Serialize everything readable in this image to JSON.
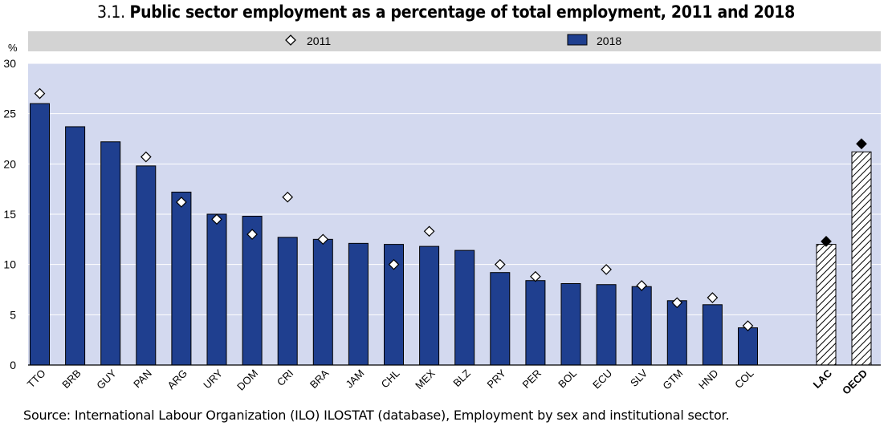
{
  "title": {
    "number": "3.1.",
    "text": "Public sector employment as a percentage of total employment, 2011 and 2018"
  },
  "source": "Source: International Labour Organization (ILO) ILOSTAT (database), Employment by sex and institutional sector.",
  "colors": {
    "plot_bg": "#d3d9ef",
    "legend_bg": "#d3d3d3",
    "bar_2018": "#1f3f8f",
    "bar_edge": "#000000",
    "hatch_bg": "#ffffff",
    "marker_2011_fill": "#ffffff",
    "marker_agg_fill": "#000000",
    "grid": "#ffffff"
  },
  "chart_data": {
    "type": "bar",
    "title": "Public sector employment as a percentage of total employment, 2011 and 2018",
    "ylabel": "%",
    "ylim": [
      0,
      30
    ],
    "yticks": [
      0,
      5,
      10,
      15,
      20,
      25,
      30
    ],
    "grid": true,
    "legend": {
      "placement": "top",
      "entries": [
        "2011",
        "2018"
      ]
    },
    "categories": [
      "TTO",
      "BRB",
      "GUY",
      "PAN",
      "ARG",
      "URY",
      "DOM",
      "CRI",
      "BRA",
      "JAM",
      "CHL",
      "MEX",
      "BLZ",
      "PRY",
      "PER",
      "BOL",
      "ECU",
      "SLV",
      "GTM",
      "HND",
      "COL",
      "LAC",
      "OECD"
    ],
    "aggregate_categories": [
      "LAC",
      "OECD"
    ],
    "series": [
      {
        "name": "2011",
        "kind": "marker",
        "values": [
          27.0,
          null,
          null,
          20.7,
          16.2,
          14.5,
          13.0,
          16.7,
          12.5,
          null,
          10.0,
          13.3,
          null,
          10.0,
          8.8,
          null,
          9.5,
          7.9,
          6.2,
          6.7,
          3.9,
          12.3,
          22.0
        ]
      },
      {
        "name": "2018",
        "kind": "bar",
        "values": [
          26.0,
          23.7,
          22.2,
          19.8,
          17.2,
          15.0,
          14.8,
          12.7,
          12.5,
          12.1,
          12.0,
          11.8,
          11.4,
          9.2,
          8.4,
          8.1,
          8.0,
          7.8,
          6.4,
          6.0,
          3.7,
          12.0,
          21.2
        ]
      }
    ]
  }
}
